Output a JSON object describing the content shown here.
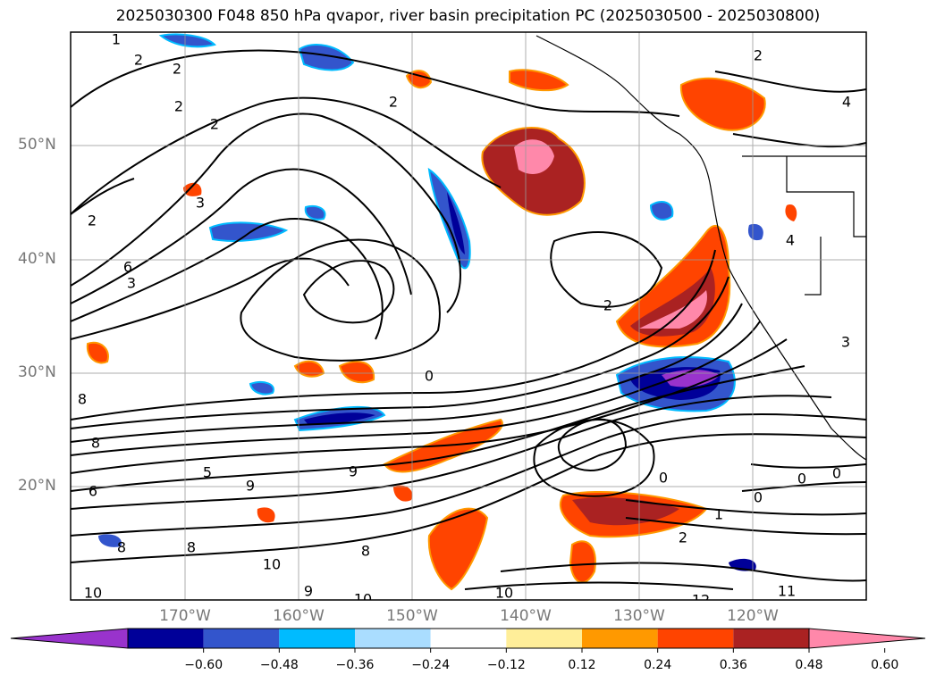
{
  "title": "2025030300 F048 850 hPa qvapor, river basin precipitation PC (2025030500 - 2025030800)",
  "lat_labels": [
    "50°N",
    "40°N",
    "30°N",
    "20°N"
  ],
  "lon_labels": [
    "170°W",
    "160°W",
    "150°W",
    "140°W",
    "130°W",
    "120°W"
  ],
  "colorbar": {
    "colors": [
      "#9933cc",
      "#000099",
      "#3355cc",
      "#00bbff",
      "#aaddff",
      "#ffffff",
      "#ffee99",
      "#ff9900",
      "#ff4400",
      "#aa2222",
      "#ff88aa"
    ],
    "tick_labels": [
      "−0.60",
      "−0.48",
      "−0.36",
      "−0.24",
      "−0.12",
      "0.12",
      "0.24",
      "0.36",
      "0.48",
      "0.60"
    ]
  },
  "contour_labels": [
    "1",
    "2",
    "2",
    "2",
    "2",
    "2",
    "2",
    "3",
    "2",
    "4",
    "6",
    "3",
    "2",
    "0",
    "8",
    "8",
    "5",
    "6",
    "9",
    "9",
    "0",
    "0",
    "0",
    "0",
    "1",
    "2",
    "8",
    "8",
    "10",
    "10",
    "9",
    "10",
    "12",
    "11",
    "10",
    "8",
    "3",
    "4"
  ]
}
